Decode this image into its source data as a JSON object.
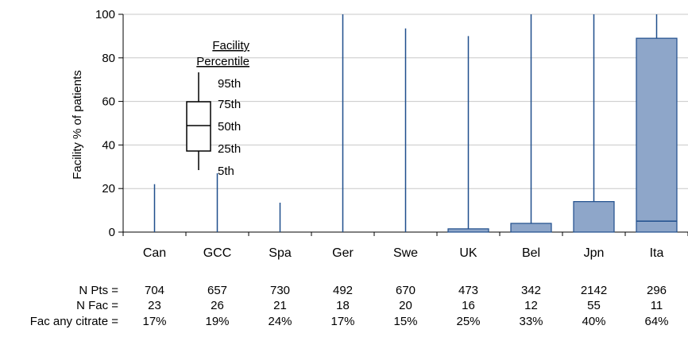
{
  "chart_data": {
    "type": "box",
    "ylabel": "Facility % of patients",
    "ylim": [
      0,
      100
    ],
    "yticks": [
      "0",
      "20",
      "40",
      "60",
      "80",
      "100"
    ],
    "grid": true,
    "categories": [
      "Can",
      "GCC",
      "Spa",
      "Ger",
      "Swe",
      "UK",
      "Bel",
      "Jpn",
      "Ita"
    ],
    "boxes": [
      {
        "p5": 0,
        "p25": 0,
        "p50": 0,
        "p75": 0,
        "p95": 22
      },
      {
        "p5": 0,
        "p25": 0,
        "p50": 0,
        "p75": 0,
        "p95": 27
      },
      {
        "p5": 0,
        "p25": 0,
        "p50": 0,
        "p75": 0,
        "p95": 13.5
      },
      {
        "p5": 0,
        "p25": 0,
        "p50": 0,
        "p75": 0,
        "p95": 100
      },
      {
        "p5": 0,
        "p25": 0,
        "p50": 0,
        "p75": 0,
        "p95": 93.5
      },
      {
        "p5": 0,
        "p25": 0,
        "p50": 0,
        "p75": 1.5,
        "p95": 90
      },
      {
        "p5": 0,
        "p25": 0,
        "p50": 0,
        "p75": 4,
        "p95": 100
      },
      {
        "p5": 0,
        "p25": 0,
        "p50": 0,
        "p75": 14,
        "p95": 100
      },
      {
        "p5": 0,
        "p25": 0,
        "p50": 5,
        "p75": 89,
        "p95": 100
      }
    ],
    "box_color": "#8ea6c9",
    "line_color": "#1f4e8c",
    "legend": {
      "title_line1": "Facility",
      "title_line2": "Percentile",
      "labels": [
        "95th",
        "75th",
        "50th",
        "25th",
        "5th"
      ]
    },
    "table": {
      "rows": [
        {
          "label": "N Pts =",
          "values": [
            "704",
            "657",
            "730",
            "492",
            "670",
            "473",
            "342",
            "2142",
            "296"
          ]
        },
        {
          "label": "N Fac =",
          "values": [
            "23",
            "26",
            "21",
            "18",
            "20",
            "16",
            "12",
            "55",
            "11"
          ]
        },
        {
          "label": "Fac any citrate =",
          "values": [
            "17%",
            "19%",
            "24%",
            "17%",
            "15%",
            "25%",
            "33%",
            "40%",
            "64%"
          ]
        }
      ]
    }
  }
}
